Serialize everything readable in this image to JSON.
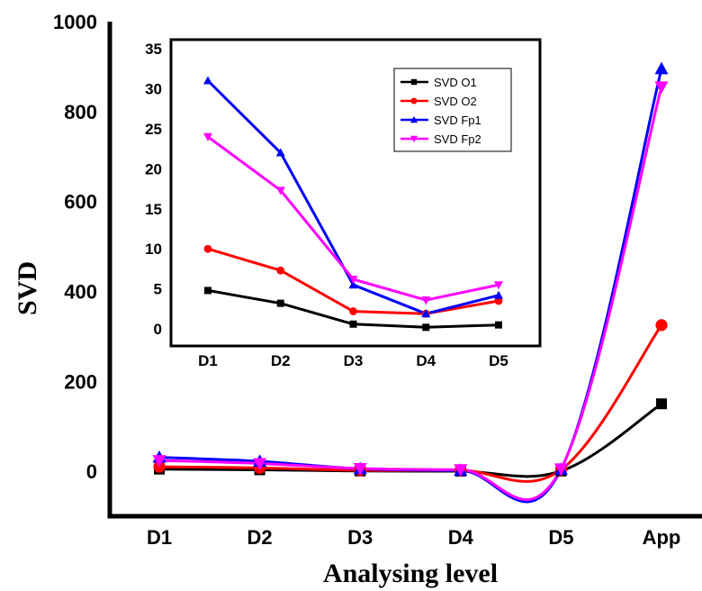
{
  "chart_data": [
    {
      "type": "line",
      "xlabel": "Analysing level",
      "ylabel": "SVD",
      "categories": [
        "D1",
        "D2",
        "D3",
        "D4",
        "D5",
        "App"
      ],
      "ylim": [
        -100,
        1000
      ],
      "yticks": [
        0,
        200,
        400,
        600,
        800,
        1000
      ],
      "smoothed": true,
      "series": [
        {
          "name": "SVD O1",
          "color": "#000000",
          "marker": "square",
          "values": [
            4.8,
            3.2,
            0.6,
            0.2,
            0.5,
            150
          ]
        },
        {
          "name": "SVD O2",
          "color": "#ff0000",
          "marker": "circle",
          "values": [
            10,
            7.3,
            2.2,
            1.9,
            3.5,
            325
          ]
        },
        {
          "name": "SVD Fp1",
          "color": "#0000ff",
          "marker": "triangle-up",
          "values": [
            31,
            22,
            5.5,
            1.9,
            4.2,
            895
          ]
        },
        {
          "name": "SVD Fp2",
          "color": "#ff00ff",
          "marker": "triangle-down",
          "values": [
            24,
            17.3,
            6.2,
            3.6,
            5.5,
            855
          ]
        }
      ]
    },
    {
      "type": "line",
      "categories": [
        "D1",
        "D2",
        "D3",
        "D4",
        "D5"
      ],
      "ylim": [
        -1,
        35
      ],
      "yticks": [
        0,
        5,
        10,
        15,
        20,
        25,
        30,
        35
      ],
      "legend_position": "top-right",
      "series": [
        {
          "name": "SVD O1",
          "color": "#000000",
          "marker": "square",
          "values": [
            4.8,
            3.2,
            0.6,
            0.2,
            0.5
          ]
        },
        {
          "name": "SVD O2",
          "color": "#ff0000",
          "marker": "circle",
          "values": [
            10,
            7.3,
            2.2,
            1.9,
            3.5
          ]
        },
        {
          "name": "SVD Fp1",
          "color": "#0000ff",
          "marker": "triangle-up",
          "values": [
            31,
            22,
            5.5,
            1.9,
            4.2
          ]
        },
        {
          "name": "SVD Fp2",
          "color": "#ff00ff",
          "marker": "triangle-down",
          "values": [
            24,
            17.3,
            6.2,
            3.6,
            5.5
          ]
        }
      ]
    }
  ]
}
